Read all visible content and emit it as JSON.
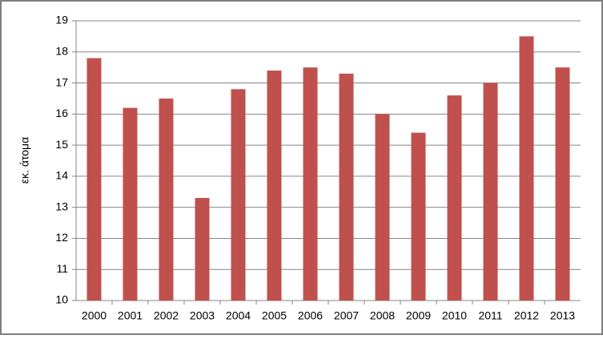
{
  "chart_data": {
    "type": "bar",
    "y_label": "εκ. άτομα",
    "categories": [
      "2000",
      "2001",
      "2002",
      "2003",
      "2004",
      "2005",
      "2006",
      "2007",
      "2008",
      "2009",
      "2010",
      "2011",
      "2012",
      "2013"
    ],
    "values": [
      17.8,
      16.2,
      16.5,
      13.3,
      16.8,
      17.4,
      17.5,
      17.3,
      16.0,
      15.4,
      16.6,
      17.0,
      18.5,
      17.5
    ],
    "color": "#c0504d",
    "ylim": [
      10,
      19
    ],
    "yticks": [
      10,
      11,
      12,
      13,
      14,
      15,
      16,
      17,
      18,
      19
    ],
    "grid": true
  }
}
